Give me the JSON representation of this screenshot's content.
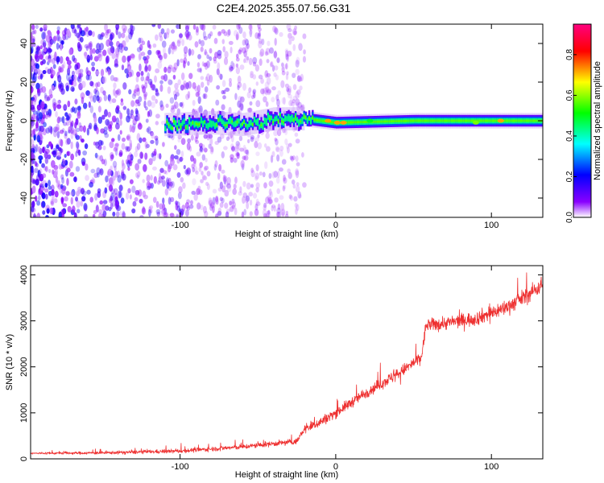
{
  "title": "C2E4.2025.355.07.56.G31",
  "chart_data": [
    {
      "type": "heatmap",
      "xlabel": "Height of straight line (km)",
      "ylabel": "Frequency (Hz)",
      "xlim": [
        -196,
        133
      ],
      "ylim": [
        -50,
        50
      ],
      "xticks": [
        -100,
        0,
        100
      ],
      "yticks": [
        -40,
        -20,
        0,
        20,
        40
      ],
      "colorbar": {
        "label": "Normalized spectral amplitude",
        "range": [
          0.0,
          0.95
        ],
        "ticks": [
          0.0,
          0.2,
          0.4,
          0.6,
          0.8
        ],
        "colors": [
          "#ffffff",
          "#8a00ff",
          "#0000ff",
          "#00ffff",
          "#00ff00",
          "#ffff00",
          "#ff0000",
          "#ff0080"
        ]
      },
      "noise_region_x": [
        -196,
        -20
      ],
      "band_center_hz": [
        {
          "x": -110,
          "y": -2
        },
        {
          "x": -80,
          "y": -1
        },
        {
          "x": -60,
          "y": -2
        },
        {
          "x": -40,
          "y": 1
        },
        {
          "x": -20,
          "y": 1
        },
        {
          "x": 0,
          "y": -1
        },
        {
          "x": 50,
          "y": 0
        },
        {
          "x": 100,
          "y": 0
        },
        {
          "x": 133,
          "y": 0
        }
      ],
      "hot_spots": [
        {
          "x": -5,
          "y": 0,
          "value": 0.9
        },
        {
          "x": 1,
          "y": -1,
          "value": 0.9
        },
        {
          "x": 5,
          "y": -1,
          "value": 0.9
        },
        {
          "x": 22,
          "y": 0,
          "value": 0.65
        },
        {
          "x": 90,
          "y": -1,
          "value": 0.75
        },
        {
          "x": 106,
          "y": 0,
          "value": 0.9
        }
      ]
    },
    {
      "type": "line",
      "xlabel": "Height of straight line (km)",
      "ylabel": "SNR (10 * v/v)",
      "xlim": [
        -196,
        133
      ],
      "ylim": [
        0,
        4200
      ],
      "xticks": [
        -100,
        0,
        100
      ],
      "yticks": [
        0,
        1000,
        2000,
        3000,
        4000
      ],
      "series": [
        {
          "name": "SNR",
          "color": "#ee3030",
          "trend": [
            {
              "x": -196,
              "y": 120
            },
            {
              "x": -150,
              "y": 130
            },
            {
              "x": -100,
              "y": 170
            },
            {
              "x": -60,
              "y": 260
            },
            {
              "x": -40,
              "y": 330
            },
            {
              "x": -25,
              "y": 380
            },
            {
              "x": -20,
              "y": 650
            },
            {
              "x": -10,
              "y": 800
            },
            {
              "x": 0,
              "y": 1000
            },
            {
              "x": 20,
              "y": 1450
            },
            {
              "x": 40,
              "y": 1850
            },
            {
              "x": 55,
              "y": 2200
            },
            {
              "x": 58,
              "y": 2900
            },
            {
              "x": 70,
              "y": 2950
            },
            {
              "x": 90,
              "y": 3050
            },
            {
              "x": 110,
              "y": 3300
            },
            {
              "x": 125,
              "y": 3600
            },
            {
              "x": 133,
              "y": 3800
            }
          ]
        }
      ]
    }
  ]
}
